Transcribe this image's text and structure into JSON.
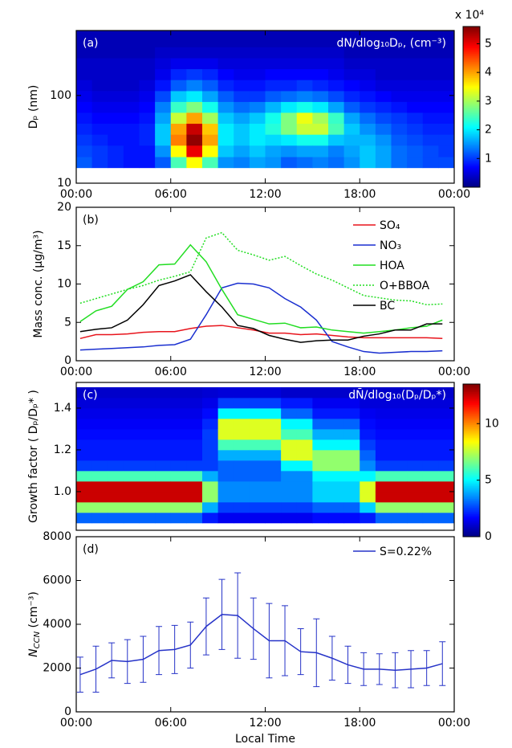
{
  "chart_data": [
    {
      "type": "heatmap",
      "panel_label": "(a)",
      "y_label": "Dₚ (nm)",
      "annotation": "dN/dlog₁₀Dₚ, (cm⁻³)",
      "colorbar_label": "x 10⁴",
      "x_bins": [
        0,
        1,
        2,
        3,
        4,
        5,
        6,
        7,
        8,
        9,
        10,
        11,
        12,
        13,
        14,
        15,
        16,
        17,
        18,
        19,
        20,
        21,
        22,
        23,
        24
      ],
      "y_bins": [
        15,
        20,
        27,
        36,
        48,
        64,
        85,
        113,
        151,
        201,
        268,
        357,
        550
      ],
      "z": [
        [
          1.2,
          1.1,
          1.0,
          0.9,
          0.8,
          0.7,
          0.6,
          0.5,
          0.4,
          0.4,
          0.3,
          0.3
        ],
        [
          1.0,
          1.0,
          0.9,
          0.8,
          0.7,
          0.6,
          0.5,
          0.4,
          0.4,
          0.4,
          0.3,
          0.3
        ],
        [
          0.9,
          0.9,
          0.8,
          0.8,
          0.7,
          0.6,
          0.5,
          0.4,
          0.4,
          0.4,
          0.3,
          0.3
        ],
        [
          0.8,
          0.8,
          0.8,
          0.8,
          0.7,
          0.6,
          0.5,
          0.4,
          0.4,
          0.4,
          0.3,
          0.3
        ],
        [
          0.8,
          0.8,
          0.9,
          0.9,
          0.8,
          0.7,
          0.6,
          0.5,
          0.4,
          0.4,
          0.3,
          0.3
        ],
        [
          1.2,
          1.5,
          1.8,
          1.8,
          1.6,
          1.4,
          1.1,
          0.8,
          0.6,
          0.5,
          0.4,
          0.3
        ],
        [
          2.5,
          3.5,
          4.2,
          4.0,
          3.2,
          2.4,
          1.8,
          1.2,
          0.9,
          0.6,
          0.4,
          0.3
        ],
        [
          3.5,
          5.0,
          5.5,
          5.2,
          4.0,
          2.8,
          2.0,
          1.4,
          1.0,
          0.6,
          0.4,
          0.3
        ],
        [
          2.5,
          3.5,
          4.0,
          3.8,
          3.0,
          2.2,
          1.6,
          1.2,
          0.9,
          0.6,
          0.4,
          0.3
        ],
        [
          1.5,
          1.8,
          2.0,
          2.0,
          1.8,
          1.5,
          1.2,
          0.9,
          0.7,
          0.5,
          0.4,
          0.3
        ],
        [
          1.4,
          1.6,
          1.8,
          1.8,
          1.6,
          1.3,
          1.0,
          0.8,
          0.6,
          0.5,
          0.4,
          0.3
        ],
        [
          1.6,
          1.8,
          2.0,
          2.0,
          1.8,
          1.4,
          1.0,
          0.8,
          0.6,
          0.5,
          0.4,
          0.3
        ],
        [
          1.5,
          1.6,
          1.9,
          2.3,
          2.2,
          1.7,
          1.2,
          0.9,
          0.7,
          0.5,
          0.4,
          0.3
        ],
        [
          1.2,
          1.5,
          2.0,
          2.8,
          2.8,
          2.0,
          1.3,
          0.9,
          0.7,
          0.5,
          0.4,
          0.3
        ],
        [
          1.3,
          1.6,
          2.2,
          3.2,
          3.4,
          2.2,
          1.4,
          1.0,
          0.7,
          0.5,
          0.4,
          0.3
        ],
        [
          1.4,
          1.6,
          2.2,
          3.2,
          3.0,
          2.0,
          1.3,
          0.9,
          0.7,
          0.5,
          0.4,
          0.3
        ],
        [
          1.3,
          1.4,
          1.8,
          2.5,
          2.4,
          1.6,
          1.1,
          0.8,
          0.6,
          0.5,
          0.4,
          0.3
        ],
        [
          1.5,
          1.6,
          1.7,
          1.8,
          1.6,
          1.2,
          0.9,
          0.7,
          0.5,
          0.4,
          0.3,
          0.3
        ],
        [
          1.8,
          1.8,
          1.7,
          1.5,
          1.3,
          1.0,
          0.8,
          0.6,
          0.5,
          0.4,
          0.3,
          0.3
        ],
        [
          1.6,
          1.6,
          1.5,
          1.3,
          1.1,
          0.9,
          0.7,
          0.5,
          0.4,
          0.4,
          0.3,
          0.3
        ],
        [
          1.3,
          1.3,
          1.2,
          1.1,
          1.0,
          0.8,
          0.6,
          0.5,
          0.4,
          0.4,
          0.3,
          0.3
        ],
        [
          1.2,
          1.2,
          1.1,
          1.0,
          0.9,
          0.7,
          0.6,
          0.5,
          0.4,
          0.4,
          0.3,
          0.3
        ],
        [
          1.1,
          1.1,
          1.0,
          0.9,
          0.8,
          0.7,
          0.6,
          0.5,
          0.4,
          0.4,
          0.3,
          0.3
        ],
        [
          1.1,
          1.0,
          1.0,
          0.9,
          0.8,
          0.7,
          0.6,
          0.5,
          0.4,
          0.4,
          0.3,
          0.3
        ]
      ],
      "xlim": [
        0,
        24
      ],
      "xticks": [
        {
          "value": 0,
          "label": "00:00"
        },
        {
          "value": 6,
          "label": "06:00"
        },
        {
          "value": 12,
          "label": "12:00"
        },
        {
          "value": 18,
          "label": "18:00"
        },
        {
          "value": 24,
          "label": "00:00"
        }
      ],
      "ylim": [
        10,
        550
      ],
      "yticks": [
        10,
        100
      ],
      "yscale": "log",
      "colormap": "jet",
      "clim": [
        0,
        5.6
      ],
      "cticks": [
        1,
        2,
        3,
        4,
        5
      ]
    },
    {
      "type": "line",
      "panel_label": "(b)",
      "y_label": "Mass conc. (µg/m³)",
      "x": [
        0.25,
        1.25,
        2.25,
        3.25,
        4.25,
        5.25,
        6.25,
        7.25,
        8.25,
        9.25,
        10.25,
        11.25,
        12.25,
        13.25,
        14.25,
        15.25,
        16.25,
        17.25,
        18.25,
        19.25,
        20.25,
        21.25,
        22.25,
        23.25
      ],
      "series": [
        {
          "name": "SO₄",
          "color": "#e8141c",
          "values": [
            2.9,
            3.4,
            3.4,
            3.5,
            3.7,
            3.8,
            3.8,
            4.2,
            4.5,
            4.6,
            4.3,
            4.0,
            3.6,
            3.6,
            3.4,
            3.5,
            3.3,
            3.1,
            3.0,
            3.0,
            3.0,
            3.0,
            3.0,
            2.9
          ]
        },
        {
          "name": "NO₃",
          "color": "#1a2fd0",
          "values": [
            1.4,
            1.5,
            1.6,
            1.7,
            1.8,
            2.0,
            2.1,
            2.8,
            6.0,
            9.5,
            10.1,
            10.0,
            9.5,
            8.1,
            7.0,
            5.3,
            2.5,
            1.8,
            1.2,
            1.0,
            1.1,
            1.2,
            1.2,
            1.3
          ]
        },
        {
          "name": "HOA",
          "color": "#22dd22",
          "values": [
            5.1,
            6.5,
            7.1,
            9.3,
            10.3,
            12.5,
            12.6,
            15.1,
            12.9,
            9.3,
            6.0,
            5.4,
            4.8,
            4.9,
            4.3,
            4.4,
            4.0,
            3.8,
            3.6,
            3.8,
            4.0,
            4.3,
            4.5,
            5.3
          ]
        },
        {
          "name": "O+BBOA",
          "color": "#22dd22",
          "dash": true,
          "values": [
            7.5,
            8.1,
            8.7,
            9.3,
            9.8,
            10.5,
            11.0,
            11.6,
            16.0,
            16.7,
            14.4,
            13.8,
            13.1,
            13.6,
            12.4,
            11.3,
            10.5,
            9.5,
            8.5,
            8.2,
            7.9,
            7.8,
            7.3,
            7.4
          ]
        },
        {
          "name": "BC",
          "color": "#000000",
          "values": [
            3.8,
            4.1,
            4.3,
            5.3,
            7.3,
            9.8,
            10.4,
            11.2,
            9.0,
            7.0,
            4.6,
            4.2,
            3.3,
            2.8,
            2.4,
            2.6,
            2.7,
            2.7,
            3.2,
            3.5,
            4.0,
            4.0,
            4.8,
            4.8
          ]
        }
      ],
      "xlim": [
        0,
        24
      ],
      "xticks": [
        {
          "value": 0,
          "label": "00:00"
        },
        {
          "value": 6,
          "label": "06:00"
        },
        {
          "value": 12,
          "label": "12:00"
        },
        {
          "value": 18,
          "label": "18:00"
        },
        {
          "value": 24,
          "label": "00:00"
        }
      ],
      "ylim": [
        0,
        20
      ],
      "yticks": [
        0,
        5,
        10,
        15,
        20
      ],
      "legend": "upper right"
    },
    {
      "type": "heatmap",
      "panel_label": "(c)",
      "y_label": "Growth factor ( Dₚ/Dₚ* )",
      "annotation": "dN̄/dlog₁₀(Dₚ/Dₚ*)",
      "x_bins": [
        0,
        1,
        2,
        3,
        4,
        5,
        6,
        7,
        8,
        9,
        10,
        11,
        12,
        13,
        14,
        15,
        16,
        17,
        18,
        19,
        20,
        21,
        22,
        23,
        24
      ],
      "y_bins": [
        0.85,
        0.9,
        0.95,
        1.0,
        1.05,
        1.1,
        1.15,
        1.2,
        1.25,
        1.3,
        1.35,
        1.4,
        1.45,
        1.5
      ],
      "z": [
        [
          3,
          7,
          12.5,
          12.5,
          6,
          2.5,
          2,
          2,
          1.8,
          1.6,
          1.4,
          1.2,
          1.0
        ],
        [
          3,
          7,
          12.5,
          12.5,
          6,
          2.5,
          2,
          2,
          1.8,
          1.6,
          1.4,
          1.2,
          1.0
        ],
        [
          3,
          7,
          12.5,
          12.5,
          6,
          2.5,
          2,
          2,
          1.8,
          1.6,
          1.4,
          1.2,
          1.0
        ],
        [
          3,
          7,
          12.5,
          12.5,
          6,
          2.5,
          2,
          2,
          1.8,
          1.6,
          1.4,
          1.2,
          1.0
        ],
        [
          3,
          7,
          12.5,
          12.5,
          6,
          2.5,
          2,
          2,
          1.8,
          1.6,
          1.4,
          1.2,
          1.0
        ],
        [
          3,
          7,
          12.5,
          12.5,
          6,
          2.5,
          2,
          2,
          1.8,
          1.6,
          1.4,
          1.2,
          1.0
        ],
        [
          3,
          7,
          12.5,
          12.5,
          6,
          2.5,
          2,
          2,
          1.8,
          1.6,
          1.4,
          1.2,
          1.0
        ],
        [
          3,
          7,
          12.5,
          12.5,
          6,
          2.5,
          2,
          2,
          1.8,
          1.6,
          1.4,
          1.2,
          1.0
        ],
        [
          2,
          4,
          7,
          7,
          4,
          2.5,
          2.5,
          2.5,
          2.5,
          2.2,
          1.8,
          1.4,
          1.1
        ],
        [
          1.5,
          2.5,
          3.5,
          3.5,
          3,
          3,
          4,
          6,
          8,
          8,
          5,
          2.5,
          1.2
        ],
        [
          1.5,
          2.5,
          3.5,
          3.5,
          3,
          3,
          4,
          6,
          8,
          8,
          5,
          2.5,
          1.2
        ],
        [
          1.5,
          2.5,
          3.5,
          3.5,
          3,
          3,
          4,
          6,
          8,
          8,
          5,
          2.5,
          1.2
        ],
        [
          1.5,
          2.5,
          3.5,
          3.5,
          3,
          3,
          4,
          6,
          8,
          8,
          5,
          2.5,
          1.2
        ],
        [
          1.5,
          2.5,
          3.5,
          3.5,
          3.5,
          5,
          8,
          8,
          6,
          5,
          3,
          2,
          1
        ],
        [
          1.5,
          2.5,
          3.5,
          3.5,
          3.5,
          5,
          8,
          8,
          6,
          5,
          3,
          2,
          1
        ],
        [
          1.8,
          3,
          4.5,
          4.5,
          5,
          7,
          7,
          5,
          4,
          3,
          2,
          1.5,
          1
        ],
        [
          1.8,
          3,
          4.5,
          4.5,
          5,
          7,
          7,
          5,
          4,
          3,
          2,
          1.5,
          1
        ],
        [
          1.8,
          3,
          4.5,
          4.5,
          5,
          7,
          7,
          5,
          4,
          3,
          2,
          1.5,
          1
        ],
        [
          2,
          4.5,
          8,
          8,
          5,
          3.5,
          3,
          2.5,
          2,
          1.8,
          1.5,
          1.2,
          1
        ],
        [
          3,
          7,
          12.5,
          12.5,
          6,
          2.5,
          2,
          2,
          1.8,
          1.6,
          1.4,
          1.2,
          1.0
        ],
        [
          3,
          7,
          12.5,
          12.5,
          6,
          2.5,
          2,
          2,
          1.8,
          1.6,
          1.4,
          1.2,
          1.0
        ],
        [
          3,
          7,
          12.5,
          12.5,
          6,
          2.5,
          2,
          2,
          1.8,
          1.6,
          1.4,
          1.2,
          1.0
        ],
        [
          3,
          7,
          12.5,
          12.5,
          6,
          2.5,
          2,
          2,
          1.8,
          1.6,
          1.4,
          1.2,
          1.0
        ],
        [
          3,
          7,
          12.5,
          12.5,
          6,
          2.5,
          2,
          2,
          1.8,
          1.6,
          1.4,
          1.2,
          1.0
        ]
      ],
      "xlim": [
        0,
        24
      ],
      "ylim": [
        0.815,
        1.523
      ],
      "yticks": [
        {
          "value": 1.0,
          "label": "1.0"
        },
        {
          "value": 1.2,
          "label": "1.2"
        },
        {
          "value": 1.4,
          "label": "1.4"
        }
      ],
      "colormap": "jet",
      "clim": [
        0,
        13.5
      ],
      "cticks": [
        0,
        5,
        10
      ]
    },
    {
      "type": "errorbar",
      "panel_label": "(d)",
      "y_label": [
        "N",
        "CCN",
        " (cm⁻³)"
      ],
      "x_label": "Local Time",
      "x": [
        0.25,
        1.25,
        2.25,
        3.25,
        4.25,
        5.25,
        6.25,
        7.25,
        8.25,
        9.25,
        10.25,
        11.25,
        12.25,
        13.25,
        14.25,
        15.25,
        16.25,
        17.25,
        18.25,
        19.25,
        20.25,
        21.25,
        22.25,
        23.25
      ],
      "series": [
        {
          "name": "S=0.22%",
          "color": "#2633c8",
          "values": [
            1700,
            1950,
            2350,
            2300,
            2400,
            2800,
            2850,
            3050,
            3900,
            4450,
            4400,
            3800,
            3250,
            3250,
            2750,
            2700,
            2450,
            2150,
            1950,
            1950,
            1900,
            1950,
            2000,
            2200
          ],
          "errors": [
            800,
            1050,
            800,
            1000,
            1050,
            1100,
            1100,
            1050,
            1300,
            1600,
            1950,
            1400,
            1700,
            1600,
            1050,
            1550,
            1000,
            850,
            750,
            700,
            800,
            850,
            800,
            1000
          ]
        }
      ],
      "xlim": [
        0,
        24
      ],
      "xticks": [
        {
          "value": 0,
          "label": "00:00"
        },
        {
          "value": 6,
          "label": "06:00"
        },
        {
          "value": 12,
          "label": "12:00"
        },
        {
          "value": 18,
          "label": "18:00"
        },
        {
          "value": 24,
          "label": "00:00"
        }
      ],
      "ylim": [
        0,
        8000
      ],
      "yticks": [
        0,
        2000,
        4000,
        6000,
        8000
      ],
      "legend": "upper right"
    }
  ]
}
